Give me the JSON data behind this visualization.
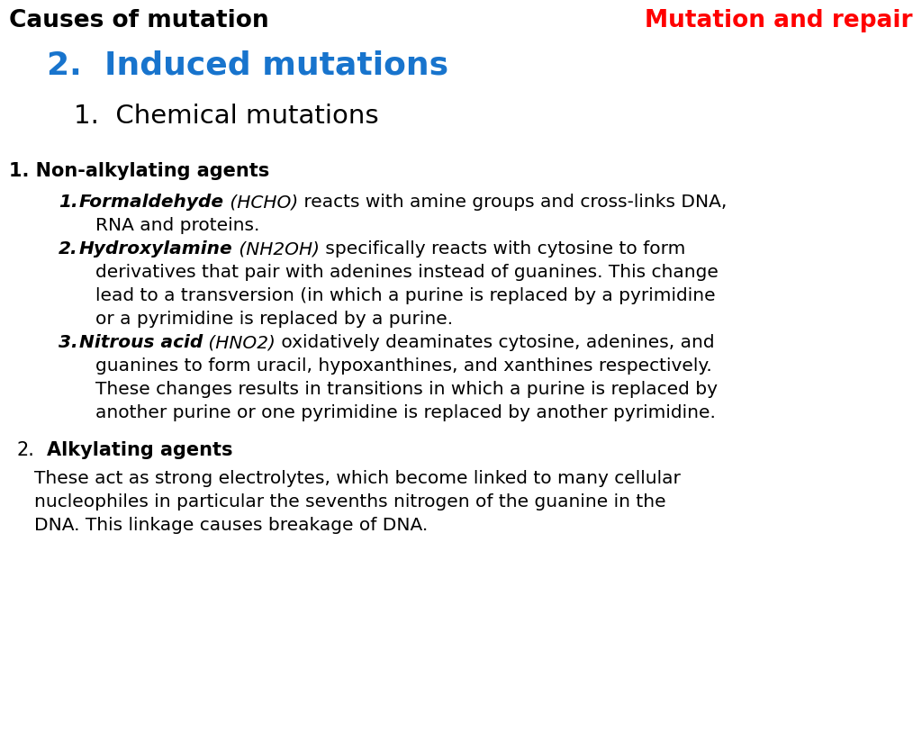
{
  "title_left": "Causes of mutation",
  "title_right": "Mutation and repair",
  "subtitle": "2.  Induced mutations",
  "sub_subtitle": "1.  Chemical mutations",
  "section1_header": "1. Non-alkylating agents",
  "section2_number": "2.",
  "section2_bold": "Alkylating agents",
  "section2_body_lines": [
    "These act as strong electrolytes, which become linked to many cellular",
    "nucleophiles in particular the sevenths nitrogen of the guanine in the",
    "DNA. This linkage causes breakage of DNA."
  ],
  "colors": {
    "background": "#ffffff",
    "title_left": "#000000",
    "title_right": "#ff0000",
    "subtitle": "#1874cd",
    "sub_subtitle": "#000000",
    "body": "#000000"
  }
}
